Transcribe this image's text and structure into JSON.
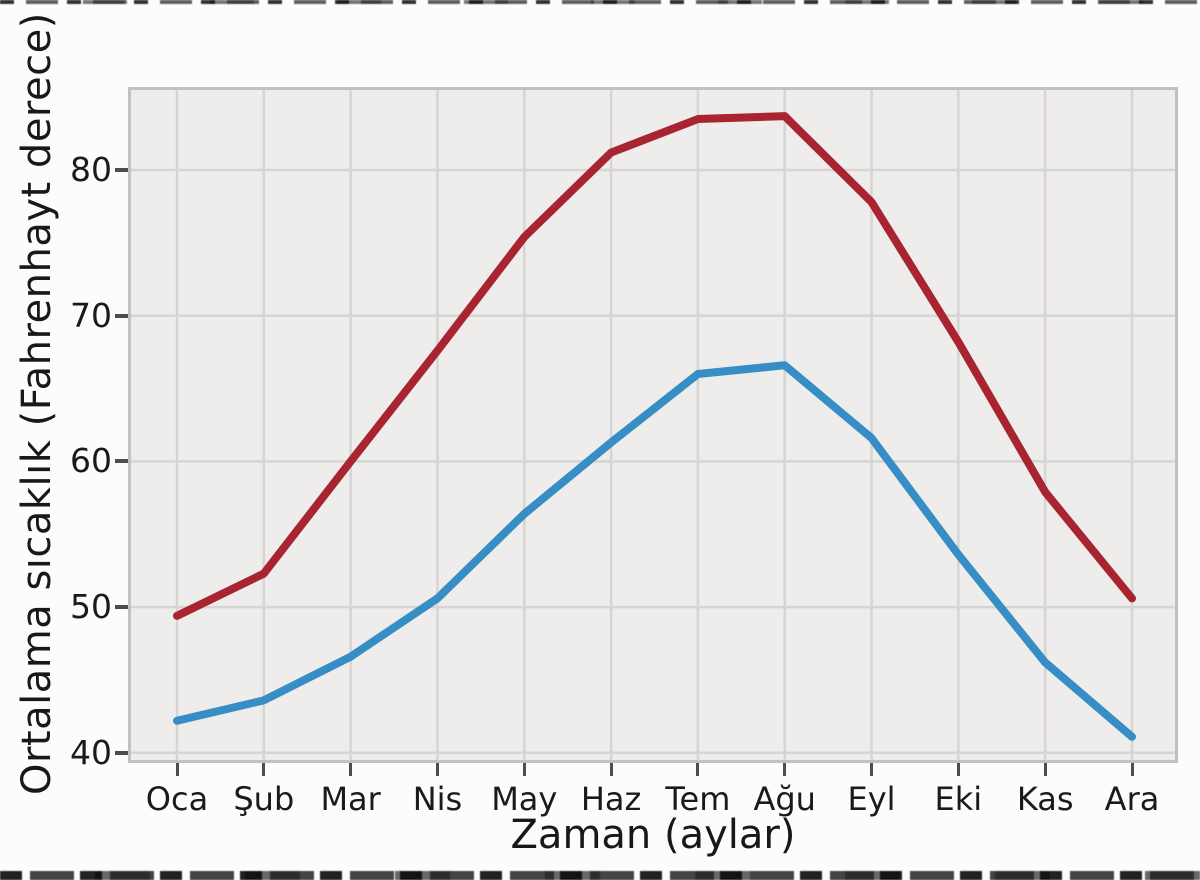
{
  "figure": {
    "background": "#fcfcfb",
    "plot_background": "#efedec",
    "grid_color": "#d7d5d3",
    "border_color": "#c3c1c0",
    "tick_color": "#4d4d4d",
    "text_color": "#1a1a1a"
  },
  "chart_data": {
    "type": "line",
    "title": "",
    "xlabel": "Zaman (aylar)",
    "ylabel": "Ortalama sıcaklık (Fahrenhayt derece)",
    "categories": [
      "Oca",
      "Şub",
      "Mar",
      "Nis",
      "May",
      "Haz",
      "Tem",
      "Ağu",
      "Eyl",
      "Eki",
      "Kas",
      "Ara"
    ],
    "series": [
      {
        "name": "red-line",
        "color": "#a72430",
        "values": [
          49.4,
          52.3,
          60.0,
          67.6,
          75.4,
          81.2,
          83.5,
          83.7,
          77.8,
          68.2,
          57.9,
          50.6
        ]
      },
      {
        "name": "blue-line",
        "color": "#378ec5",
        "values": [
          42.2,
          43.6,
          46.6,
          50.6,
          56.4,
          61.3,
          66.0,
          66.6,
          61.6,
          53.6,
          46.2,
          41.1
        ]
      }
    ],
    "yticks": [
      40,
      50,
      60,
      70,
      80
    ],
    "ylim": [
      39.3,
      85.7
    ],
    "grid": true,
    "legend": "none"
  }
}
